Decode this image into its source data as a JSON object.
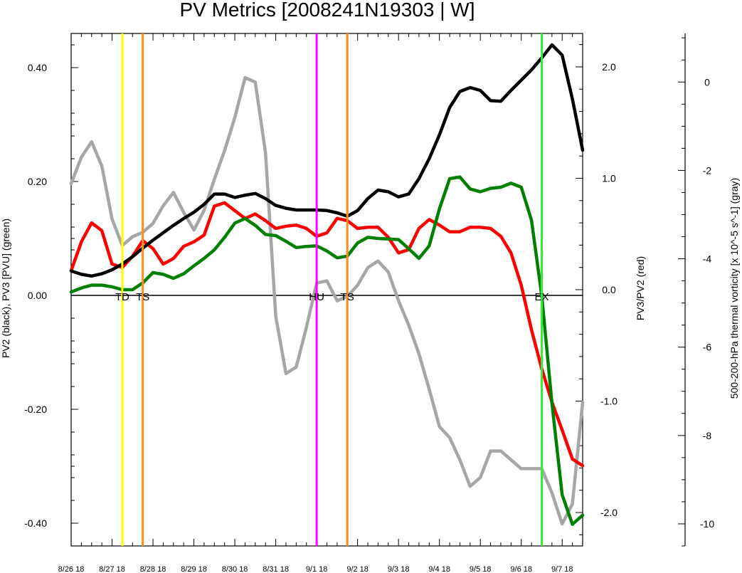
{
  "chart_data": {
    "type": "line",
    "title": "PV Metrics [2008241N19303 | W]",
    "left_axis": {
      "label": "PV2 (black), PV3 [PVU] (green)",
      "range": [
        -0.44,
        0.46
      ],
      "ticks": [
        0.4,
        0.2,
        0.0,
        -0.2,
        -0.4
      ],
      "tick_labels": [
        "0.40",
        "0.20",
        "0.00",
        "-0.20",
        "-0.40"
      ]
    },
    "right_axis": {
      "label": "PV3/PV2 (red)",
      "range": [
        -2.3,
        2.3
      ],
      "ticks": [
        2.0,
        1.0,
        0.0,
        -1.0,
        -2.0
      ],
      "tick_labels": [
        "2.0",
        "1.0",
        "0.0",
        "-1.0",
        "-2.0"
      ]
    },
    "far_right_axis": {
      "label": "500-200-hPa thermal vorticity [x 10^-5 s^-1] (gray)",
      "range": [
        -10.5,
        1.1
      ],
      "ticks": [
        0,
        -2,
        -4,
        -6,
        -8,
        -10
      ],
      "tick_labels": [
        "0",
        "-2",
        "-4",
        "-6",
        "-8",
        "-10"
      ]
    },
    "x_axis": {
      "unit": "days since 8/26 18",
      "range": [
        0,
        12.5
      ],
      "tick_labels": [
        "8/26 18",
        "8/27 18",
        "8/28 18",
        "8/29 18",
        "8/30 18",
        "8/31 18",
        "9/1 18",
        "9/2 18",
        "9/3 18",
        "9/4 18",
        "9/5 18",
        "9/6 18",
        "9/7 18"
      ]
    },
    "events": [
      {
        "label": "TD",
        "x": 1.25,
        "color": "#ffff00"
      },
      {
        "label": "TS",
        "x": 1.75,
        "color": "#ff8c1a"
      },
      {
        "label": "HU",
        "x": 6.0,
        "color": "#ff00ff"
      },
      {
        "label": "TS",
        "x": 6.75,
        "color": "#ff8c1a"
      },
      {
        "label": "EX",
        "x": 11.5,
        "color": "#33ee33"
      }
    ],
    "series": [
      {
        "name": "PV2",
        "axis": "left",
        "color": "#000000",
        "x": [
          0,
          0.25,
          0.5,
          0.75,
          1,
          1.25,
          1.5,
          1.75,
          2,
          2.25,
          2.5,
          2.75,
          3,
          3.25,
          3.5,
          3.75,
          4,
          4.25,
          4.5,
          4.75,
          5,
          5.25,
          5.5,
          5.75,
          6,
          6.25,
          6.5,
          6.75,
          7,
          7.25,
          7.5,
          7.75,
          8,
          8.25,
          8.5,
          8.75,
          9,
          9.25,
          9.5,
          9.75,
          10,
          10.25,
          10.5,
          10.75,
          11,
          11.25,
          11.5,
          11.75,
          12,
          12.25,
          12.5
        ],
        "y": [
          0.043,
          0.037,
          0.034,
          0.038,
          0.045,
          0.055,
          0.068,
          0.083,
          0.097,
          0.11,
          0.123,
          0.135,
          0.146,
          0.16,
          0.178,
          0.178,
          0.172,
          0.176,
          0.179,
          0.17,
          0.158,
          0.153,
          0.15,
          0.15,
          0.15,
          0.149,
          0.145,
          0.139,
          0.149,
          0.17,
          0.185,
          0.182,
          0.173,
          0.178,
          0.205,
          0.24,
          0.282,
          0.33,
          0.358,
          0.365,
          0.36,
          0.342,
          0.341,
          0.36,
          0.378,
          0.396,
          0.417,
          0.44,
          0.422,
          0.345,
          0.255
        ]
      },
      {
        "name": "PV3",
        "axis": "left",
        "color": "#008000",
        "x": [
          0,
          0.25,
          0.5,
          0.75,
          1,
          1.25,
          1.5,
          1.75,
          2,
          2.25,
          2.5,
          2.75,
          3,
          3.25,
          3.5,
          3.75,
          4,
          4.25,
          4.5,
          4.75,
          5,
          5.25,
          5.5,
          5.75,
          6,
          6.25,
          6.5,
          6.75,
          7,
          7.25,
          7.5,
          7.75,
          8,
          8.25,
          8.5,
          8.75,
          9,
          9.25,
          9.5,
          9.75,
          10,
          10.25,
          10.5,
          10.75,
          11,
          11.25,
          11.5,
          11.75,
          12,
          12.25,
          12.5
        ],
        "y": [
          0.006,
          0.013,
          0.018,
          0.018,
          0.015,
          0.01,
          0.01,
          0.022,
          0.04,
          0.037,
          0.03,
          0.038,
          0.052,
          0.065,
          0.08,
          0.102,
          0.127,
          0.135,
          0.123,
          0.107,
          0.105,
          0.095,
          0.084,
          0.086,
          0.087,
          0.078,
          0.066,
          0.069,
          0.092,
          0.102,
          0.1,
          0.099,
          0.098,
          0.082,
          0.065,
          0.087,
          0.152,
          0.205,
          0.208,
          0.187,
          0.182,
          0.188,
          0.19,
          0.197,
          0.19,
          0.132,
          0.0,
          -0.19,
          -0.35,
          -0.402,
          -0.386
        ]
      },
      {
        "name": "PV3/PV2",
        "axis": "right",
        "color": "#ff0000",
        "x": [
          0,
          0.25,
          0.5,
          0.75,
          1,
          1.25,
          1.5,
          1.75,
          2,
          2.25,
          2.5,
          2.75,
          3,
          3.25,
          3.5,
          3.75,
          4,
          4.25,
          4.5,
          4.75,
          5,
          5.25,
          5.5,
          5.75,
          6,
          6.25,
          6.5,
          6.75,
          7,
          7.25,
          7.5,
          7.75,
          8,
          8.25,
          8.5,
          8.75,
          9,
          9.25,
          9.5,
          9.75,
          10,
          10.25,
          10.5,
          10.75,
          11,
          11.25,
          11.5,
          11.75,
          12,
          12.25,
          12.5
        ],
        "y": [
          0.17,
          0.43,
          0.6,
          0.53,
          0.23,
          0.2,
          0.3,
          0.44,
          0.37,
          0.23,
          0.28,
          0.39,
          0.43,
          0.49,
          0.75,
          0.78,
          0.71,
          0.64,
          0.68,
          0.62,
          0.55,
          0.57,
          0.58,
          0.55,
          0.48,
          0.51,
          0.64,
          0.62,
          0.55,
          0.56,
          0.56,
          0.47,
          0.33,
          0.36,
          0.55,
          0.63,
          0.58,
          0.52,
          0.52,
          0.56,
          0.56,
          0.55,
          0.48,
          0.33,
          0.04,
          -0.36,
          -0.71,
          -1.01,
          -1.26,
          -1.52,
          -1.58
        ]
      },
      {
        "name": "Thermal vorticity",
        "axis": "far_right",
        "color": "#a6a6a6",
        "x": [
          0,
          0.25,
          0.5,
          0.75,
          1,
          1.25,
          1.5,
          1.75,
          2,
          2.25,
          2.5,
          2.75,
          3,
          3.25,
          3.5,
          3.75,
          4,
          4.25,
          4.5,
          4.75,
          5,
          5.25,
          5.5,
          5.75,
          6,
          6.25,
          6.5,
          6.75,
          7,
          7.25,
          7.5,
          7.75,
          8,
          8.25,
          8.5,
          8.75,
          9,
          9.25,
          9.5,
          9.75,
          10,
          10.25,
          10.5,
          10.75,
          11,
          11.25,
          11.5,
          11.75,
          12,
          12.25,
          12.5
        ],
        "y": [
          -2.3,
          -1.7,
          -1.35,
          -1.9,
          -3.1,
          -3.7,
          -3.5,
          -3.4,
          -3.2,
          -2.8,
          -2.5,
          -2.95,
          -3.35,
          -2.9,
          -2.2,
          -1.55,
          -0.8,
          0.1,
          0.0,
          -1.6,
          -5.3,
          -6.6,
          -6.45,
          -5.55,
          -4.55,
          -4.5,
          -4.95,
          -4.85,
          -4.6,
          -4.2,
          -4.05,
          -4.3,
          -4.95,
          -5.5,
          -6.15,
          -6.95,
          -7.8,
          -8.05,
          -8.55,
          -9.15,
          -8.95,
          -8.35,
          -8.35,
          -8.55,
          -8.75,
          -8.75,
          -8.75,
          -9.3,
          -10.0,
          -9.55,
          -7.25
        ]
      }
    ]
  }
}
